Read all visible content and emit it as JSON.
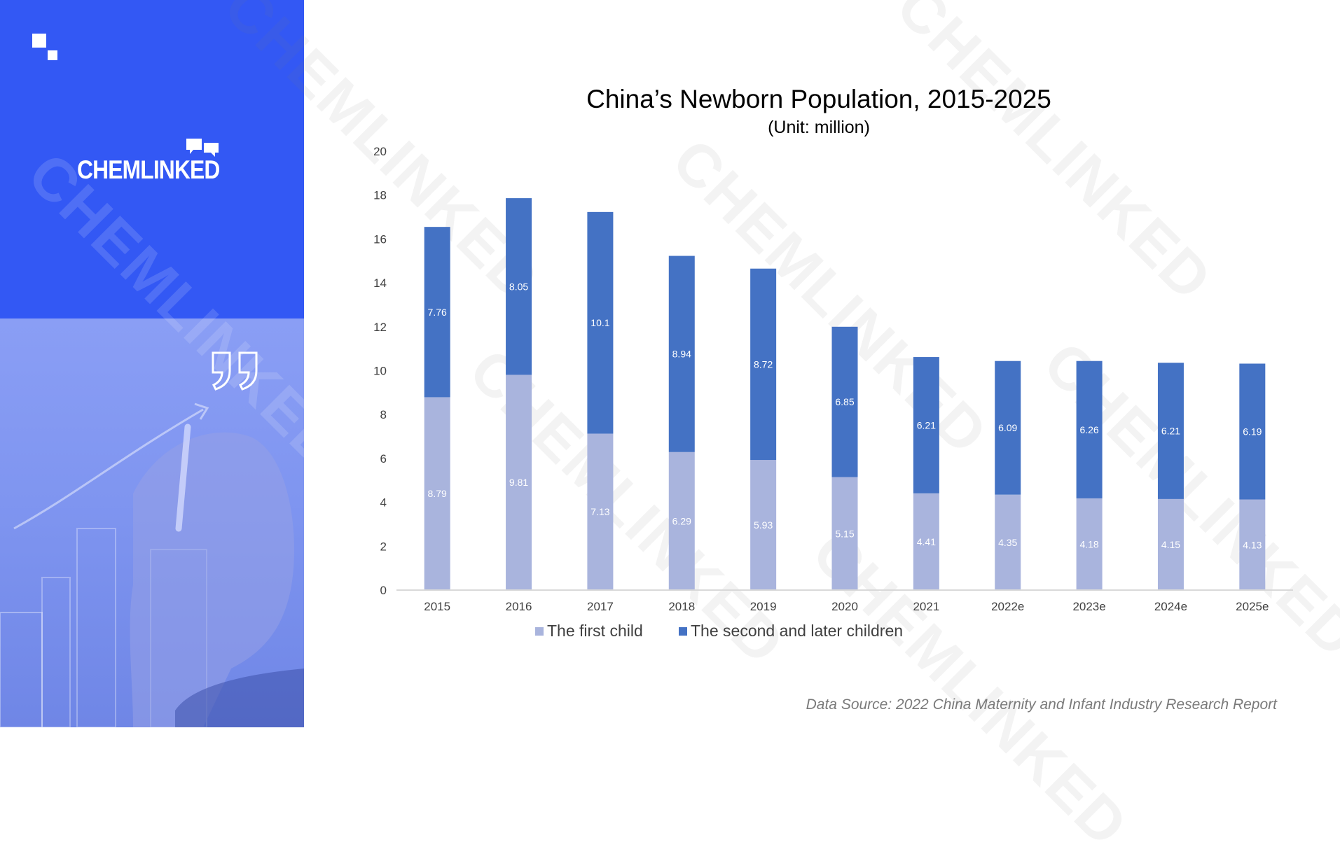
{
  "brand": {
    "logo_text": "CHEMLINKED",
    "accent": "#3358f4",
    "watermark_text": "CHEMLINKED"
  },
  "colors": {
    "first_child": "#a9b4dd",
    "second_children": "#4472c4",
    "axis_text": "#404040",
    "title_text": "#000000"
  },
  "icons": {
    "corner": "squares-icon",
    "logo": "chat-bubbles-icon",
    "quote": "quote-icon"
  },
  "chart_data": {
    "type": "bar",
    "stacked": true,
    "title": "China’s Newborn Population, 2015-2025",
    "subtitle": "(Unit: million)",
    "xlabel": "",
    "ylabel": "",
    "ylim": [
      0,
      20
    ],
    "yticks": [
      0,
      2,
      4,
      6,
      8,
      10,
      12,
      14,
      16,
      18,
      20
    ],
    "grid": false,
    "legend_position": "bottom",
    "categories": [
      "2015",
      "2016",
      "2017",
      "2018",
      "2019",
      "2020",
      "2021",
      "2022e",
      "2023e",
      "2024e",
      "2025e"
    ],
    "series": [
      {
        "name": "The first child",
        "color": "#a9b4dd",
        "values": [
          8.79,
          9.81,
          7.13,
          6.29,
          5.93,
          5.15,
          4.41,
          4.35,
          4.18,
          4.15,
          4.13
        ],
        "labels": [
          "8.79",
          "9.81",
          "7.13",
          "6.29",
          "5.93",
          "5.15",
          "4.41",
          "4.35",
          "4.18",
          "4.15",
          "4.13"
        ]
      },
      {
        "name": "The second and later children",
        "color": "#4472c4",
        "values": [
          7.76,
          8.05,
          10.1,
          8.94,
          8.72,
          6.85,
          6.21,
          6.09,
          6.26,
          6.21,
          6.19
        ],
        "labels": [
          "7.76",
          "8.05",
          "10.1",
          "8.94",
          "8.72",
          "6.85",
          "6.21",
          "6.09",
          "6.26",
          "6.21",
          "6.19"
        ]
      }
    ]
  },
  "source_note": "Data Source: 2022 China Maternity and Infant Industry Research Report"
}
